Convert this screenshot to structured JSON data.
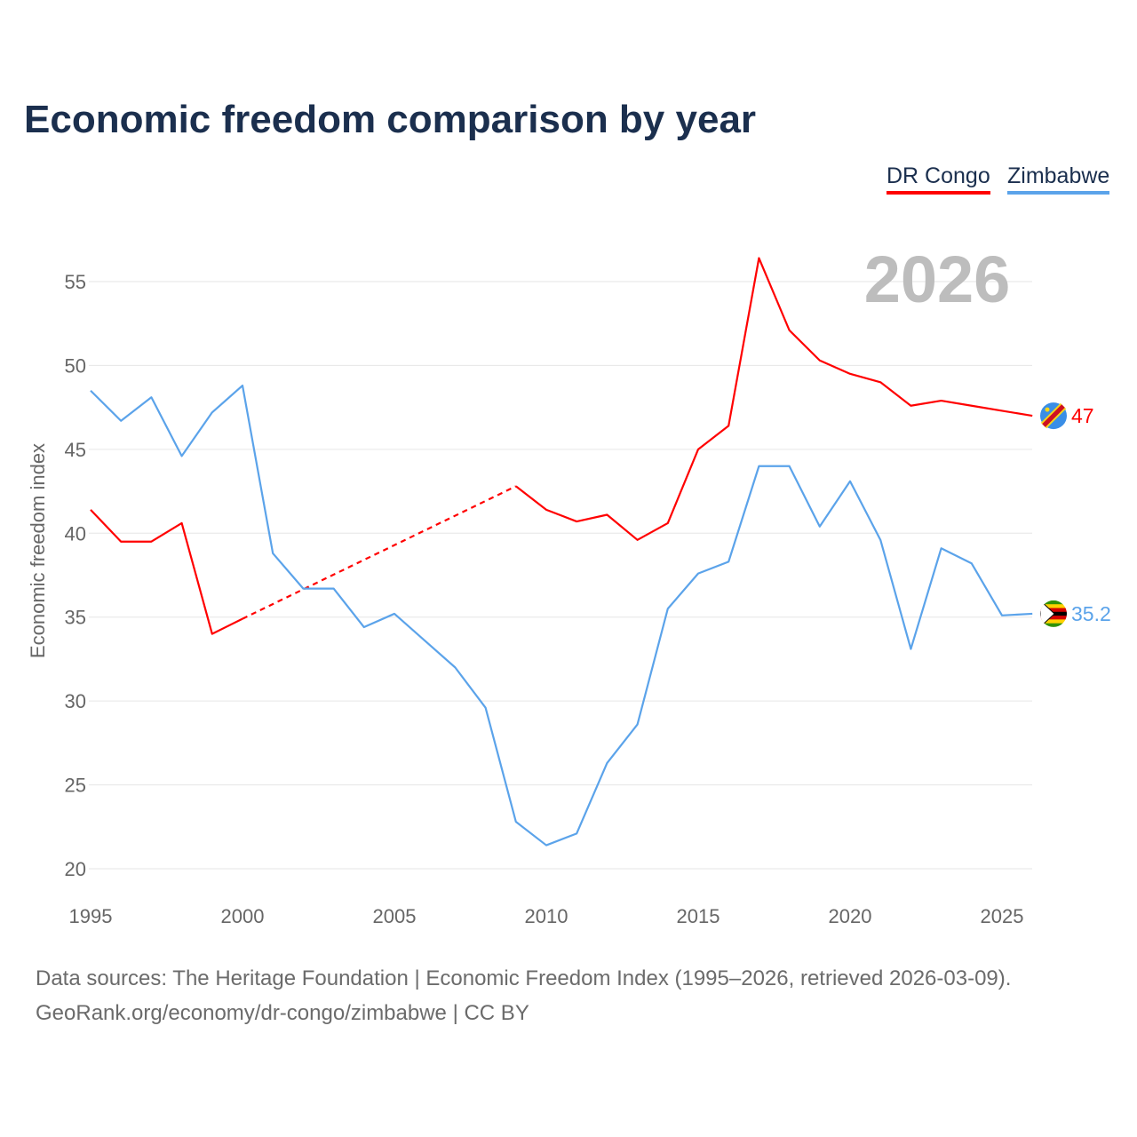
{
  "chart_data": {
    "type": "line",
    "title": "Economic freedom comparison by year",
    "xlabel": "",
    "ylabel": "Economic freedom index",
    "xlim": [
      1995,
      2026
    ],
    "ylim": [
      20,
      57
    ],
    "x_ticks": [
      1995,
      2000,
      2005,
      2010,
      2015,
      2020,
      2025
    ],
    "y_ticks": [
      20,
      25,
      30,
      35,
      40,
      45,
      50,
      55
    ],
    "grid": true,
    "legend_position": "top-right",
    "watermark": "2026",
    "series": [
      {
        "name": "DR Congo",
        "color": "#ff0000",
        "end_label": "47",
        "x": [
          1995,
          1996,
          1997,
          1998,
          1999,
          2000,
          2009,
          2010,
          2011,
          2012,
          2013,
          2014,
          2015,
          2016,
          2017,
          2018,
          2019,
          2020,
          2021,
          2022,
          2023,
          2024,
          2025,
          2026
        ],
        "values": [
          41.4,
          39.5,
          39.5,
          40.6,
          34.0,
          34.9,
          42.8,
          41.4,
          40.7,
          41.1,
          39.6,
          40.6,
          45.0,
          46.4,
          56.4,
          52.1,
          50.3,
          49.5,
          49.0,
          47.6,
          47.9,
          47.6,
          47.3,
          47.0
        ],
        "gap": [
          2000,
          2009
        ]
      },
      {
        "name": "Zimbabwe",
        "color": "#5ba3ea",
        "end_label": "35.2",
        "x": [
          1995,
          1996,
          1997,
          1998,
          1999,
          2000,
          2001,
          2002,
          2003,
          2004,
          2005,
          2006,
          2007,
          2008,
          2009,
          2010,
          2011,
          2012,
          2013,
          2014,
          2015,
          2016,
          2017,
          2018,
          2019,
          2020,
          2021,
          2022,
          2023,
          2024,
          2025,
          2026
        ],
        "values": [
          48.5,
          46.7,
          48.1,
          44.6,
          47.2,
          48.8,
          38.8,
          36.7,
          36.7,
          34.4,
          35.2,
          33.6,
          32.0,
          29.6,
          22.8,
          21.4,
          22.1,
          26.3,
          28.6,
          35.5,
          37.6,
          38.3,
          44.0,
          44.0,
          40.4,
          43.1,
          39.6,
          33.1,
          39.1,
          38.2,
          35.1,
          35.2
        ]
      }
    ]
  },
  "footer": {
    "sources": "Data sources: The Heritage Foundation | Economic Freedom Index (1995–2026, retrieved 2026-03-09).",
    "link": "GeoRank.org/economy/dr-congo/zimbabwe | CC BY"
  }
}
